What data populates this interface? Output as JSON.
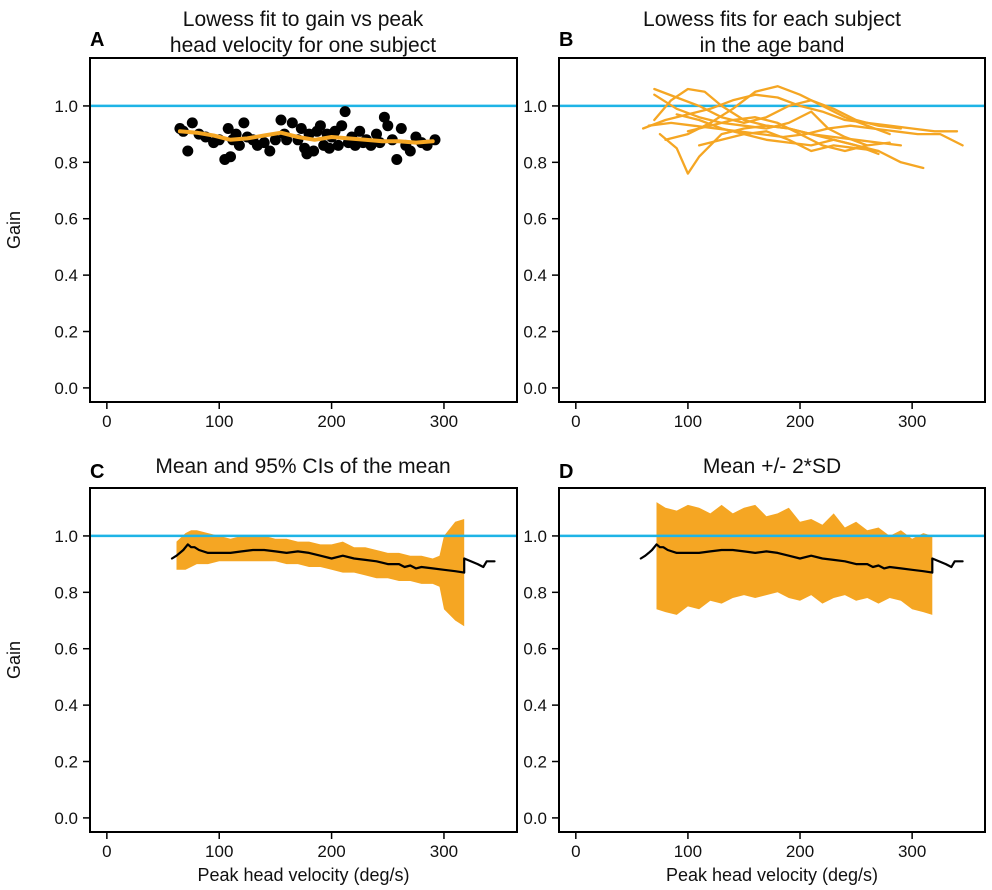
{
  "colors": {
    "orange": "#F5A623",
    "reference": "#1EB4E6",
    "points": "#000000",
    "mean": "#000000"
  },
  "chart_data": [
    {
      "panel": "A",
      "type": "scatter",
      "title": [
        "Lowess fit to gain vs peak",
        "head velocity for one subject"
      ],
      "ylabel": "Gain",
      "xlabel": "",
      "xlim": [
        -15,
        365
      ],
      "ylim": [
        -0.05,
        1.17
      ],
      "xticks": [
        0,
        100,
        200,
        300
      ],
      "yticks": [
        0.0,
        0.2,
        0.4,
        0.6,
        0.8,
        1.0
      ],
      "reference_line": 1.0,
      "points": [
        [
          65,
          0.92
        ],
        [
          68,
          0.91
        ],
        [
          72,
          0.84
        ],
        [
          76,
          0.94
        ],
        [
          82,
          0.9
        ],
        [
          88,
          0.89
        ],
        [
          95,
          0.87
        ],
        [
          100,
          0.88
        ],
        [
          105,
          0.81
        ],
        [
          108,
          0.92
        ],
        [
          110,
          0.82
        ],
        [
          112,
          0.88
        ],
        [
          115,
          0.9
        ],
        [
          118,
          0.86
        ],
        [
          122,
          0.94
        ],
        [
          125,
          0.89
        ],
        [
          130,
          0.88
        ],
        [
          134,
          0.86
        ],
        [
          140,
          0.87
        ],
        [
          145,
          0.84
        ],
        [
          150,
          0.88
        ],
        [
          155,
          0.95
        ],
        [
          158,
          0.9
        ],
        [
          160,
          0.88
        ],
        [
          165,
          0.94
        ],
        [
          170,
          0.88
        ],
        [
          173,
          0.92
        ],
        [
          176,
          0.85
        ],
        [
          178,
          0.83
        ],
        [
          180,
          0.9
        ],
        [
          184,
          0.84
        ],
        [
          187,
          0.91
        ],
        [
          190,
          0.93
        ],
        [
          193,
          0.86
        ],
        [
          196,
          0.9
        ],
        [
          198,
          0.85
        ],
        [
          200,
          0.89
        ],
        [
          203,
          0.91
        ],
        [
          206,
          0.86
        ],
        [
          209,
          0.93
        ],
        [
          212,
          0.98
        ],
        [
          215,
          0.87
        ],
        [
          218,
          0.89
        ],
        [
          221,
          0.86
        ],
        [
          225,
          0.91
        ],
        [
          228,
          0.87
        ],
        [
          231,
          0.88
        ],
        [
          235,
          0.86
        ],
        [
          240,
          0.9
        ],
        [
          243,
          0.87
        ],
        [
          247,
          0.96
        ],
        [
          250,
          0.93
        ],
        [
          254,
          0.88
        ],
        [
          258,
          0.81
        ],
        [
          262,
          0.92
        ],
        [
          266,
          0.86
        ],
        [
          270,
          0.84
        ],
        [
          275,
          0.89
        ],
        [
          280,
          0.87
        ],
        [
          285,
          0.86
        ],
        [
          292,
          0.88
        ]
      ],
      "series": [
        {
          "name": "Lowess fit",
          "x": [
            65,
            80,
            95,
            110,
            125,
            140,
            155,
            170,
            185,
            200,
            215,
            230,
            245,
            260,
            275,
            290
          ],
          "y": [
            0.91,
            0.905,
            0.895,
            0.88,
            0.885,
            0.895,
            0.905,
            0.89,
            0.88,
            0.89,
            0.885,
            0.88,
            0.875,
            0.875,
            0.87,
            0.875
          ]
        }
      ]
    },
    {
      "panel": "B",
      "type": "line",
      "title": [
        "Lowess fits for each subject",
        "in the age band"
      ],
      "ylabel": "",
      "xlabel": "",
      "xlim": [
        -15,
        365
      ],
      "ylim": [
        -0.05,
        1.17
      ],
      "xticks": [
        0,
        100,
        200,
        300
      ],
      "yticks": [
        0.0,
        0.2,
        0.4,
        0.6,
        0.8,
        1.0
      ],
      "reference_line": 1.0,
      "series": [
        {
          "name": "s1",
          "x": [
            60,
            80,
            100,
            120,
            140,
            160,
            180,
            200,
            220,
            240,
            260,
            280,
            300,
            320,
            340
          ],
          "y": [
            0.92,
            0.95,
            0.97,
            0.99,
            1.02,
            1.04,
            1.03,
            1.0,
            0.98,
            0.95,
            0.94,
            0.93,
            0.92,
            0.91,
            0.91
          ]
        },
        {
          "name": "s2",
          "x": [
            70,
            85,
            100,
            115,
            130,
            150,
            170,
            190,
            210,
            230,
            250,
            270,
            290
          ],
          "y": [
            0.95,
            1.02,
            1.06,
            1.05,
            1.0,
            0.95,
            0.93,
            0.92,
            0.9,
            0.89,
            0.88,
            0.87,
            0.86
          ]
        },
        {
          "name": "s3",
          "x": [
            75,
            90,
            100,
            110,
            130,
            150,
            170,
            190,
            210,
            230,
            250,
            270,
            290,
            310
          ],
          "y": [
            0.9,
            0.85,
            0.76,
            0.82,
            0.9,
            0.92,
            0.93,
            0.92,
            0.9,
            0.88,
            0.86,
            0.84,
            0.8,
            0.78
          ]
        },
        {
          "name": "s4",
          "x": [
            70,
            90,
            110,
            130,
            150,
            170,
            190,
            210,
            230,
            250,
            270,
            290
          ],
          "y": [
            1.06,
            1.03,
            1.0,
            0.96,
            0.94,
            0.96,
            1.0,
            1.02,
            0.99,
            0.95,
            0.93,
            0.92
          ]
        },
        {
          "name": "s5",
          "x": [
            65,
            85,
            105,
            125,
            145,
            165,
            185,
            205,
            225,
            245,
            265,
            285,
            305,
            325,
            345
          ],
          "y": [
            0.93,
            0.94,
            0.93,
            0.92,
            0.91,
            0.9,
            0.89,
            0.9,
            0.92,
            0.93,
            0.92,
            0.91,
            0.9,
            0.9,
            0.86
          ]
        },
        {
          "name": "s6",
          "x": [
            80,
            100,
            120,
            140,
            160,
            180,
            200,
            220,
            240,
            260,
            280
          ],
          "y": [
            0.88,
            0.9,
            0.94,
            0.99,
            1.05,
            1.07,
            1.04,
            1.0,
            0.96,
            0.93,
            0.9
          ]
        },
        {
          "name": "s7",
          "x": [
            90,
            110,
            130,
            150,
            170,
            190,
            210,
            230,
            250,
            270
          ],
          "y": [
            0.97,
            0.95,
            0.92,
            0.9,
            0.88,
            0.87,
            0.86,
            0.88,
            0.86,
            0.83
          ]
        },
        {
          "name": "s8",
          "x": [
            100,
            120,
            140,
            160,
            180,
            200,
            220,
            240,
            260,
            280
          ],
          "y": [
            0.91,
            0.93,
            0.95,
            0.96,
            0.94,
            0.9,
            0.86,
            0.84,
            0.86,
            0.87
          ]
        },
        {
          "name": "s9",
          "x": [
            70,
            90,
            110,
            130,
            150,
            170,
            190,
            210,
            225,
            240,
            260
          ],
          "y": [
            1.04,
            0.99,
            0.96,
            0.94,
            0.93,
            0.92,
            0.94,
            0.98,
            0.92,
            0.89,
            0.86
          ]
        },
        {
          "name": "s10",
          "x": [
            110,
            130,
            150,
            170,
            190,
            210,
            230,
            250,
            270
          ],
          "y": [
            0.86,
            0.88,
            0.9,
            0.91,
            0.88,
            0.84,
            0.86,
            0.85,
            0.84
          ]
        }
      ]
    },
    {
      "panel": "C",
      "type": "area",
      "title": [
        "Mean and 95% CIs of the mean"
      ],
      "ylabel": "Gain",
      "xlabel": "Peak head velocity (deg/s)",
      "xlim": [
        -15,
        365
      ],
      "ylim": [
        -0.05,
        1.17
      ],
      "xticks": [
        0,
        100,
        200,
        300
      ],
      "yticks": [
        0.0,
        0.2,
        0.4,
        0.6,
        0.8,
        1.0
      ],
      "reference_line": 1.0,
      "band": {
        "x": [
          62,
          70,
          75,
          80,
          90,
          100,
          110,
          120,
          130,
          140,
          150,
          160,
          170,
          180,
          190,
          200,
          210,
          220,
          230,
          240,
          250,
          260,
          270,
          280,
          290,
          296,
          300,
          310,
          318
        ],
        "upper": [
          0.98,
          1.01,
          1.02,
          1.02,
          1.01,
          1.0,
          0.99,
          1.0,
          1.0,
          1.0,
          0.99,
          0.99,
          0.98,
          0.98,
          0.97,
          0.97,
          0.98,
          0.96,
          0.96,
          0.95,
          0.94,
          0.94,
          0.93,
          0.93,
          0.92,
          0.93,
          1.0,
          1.05,
          1.06
        ],
        "lower": [
          0.88,
          0.88,
          0.89,
          0.9,
          0.9,
          0.91,
          0.91,
          0.91,
          0.91,
          0.91,
          0.91,
          0.9,
          0.9,
          0.89,
          0.89,
          0.88,
          0.87,
          0.87,
          0.86,
          0.85,
          0.85,
          0.84,
          0.84,
          0.83,
          0.83,
          0.82,
          0.74,
          0.7,
          0.68
        ]
      },
      "series": [
        {
          "name": "Mean",
          "x": [
            58,
            62,
            65,
            68,
            72,
            75,
            78,
            82,
            90,
            100,
            110,
            120,
            130,
            140,
            150,
            160,
            170,
            180,
            190,
            200,
            210,
            220,
            230,
            240,
            250,
            260,
            265,
            270,
            275,
            280,
            290,
            300,
            310,
            318,
            318,
            330,
            335,
            338,
            345
          ],
          "y": [
            0.92,
            0.93,
            0.94,
            0.95,
            0.97,
            0.96,
            0.96,
            0.95,
            0.94,
            0.94,
            0.94,
            0.945,
            0.95,
            0.95,
            0.945,
            0.94,
            0.945,
            0.94,
            0.93,
            0.92,
            0.93,
            0.92,
            0.915,
            0.91,
            0.9,
            0.9,
            0.89,
            0.895,
            0.885,
            0.89,
            0.885,
            0.88,
            0.875,
            0.87,
            0.92,
            0.9,
            0.89,
            0.91,
            0.91
          ]
        }
      ]
    },
    {
      "panel": "D",
      "type": "area",
      "title": [
        "Mean +/- 2*SD"
      ],
      "ylabel": "",
      "xlabel": "Peak head velocity (deg/s)",
      "xlim": [
        -15,
        365
      ],
      "ylim": [
        -0.05,
        1.17
      ],
      "xticks": [
        0,
        100,
        200,
        300
      ],
      "yticks": [
        0.0,
        0.2,
        0.4,
        0.6,
        0.8,
        1.0
      ],
      "reference_line": 1.0,
      "band": {
        "x": [
          72,
          80,
          90,
          100,
          110,
          120,
          130,
          140,
          150,
          160,
          170,
          180,
          190,
          200,
          210,
          220,
          230,
          240,
          250,
          260,
          270,
          280,
          290,
          300,
          310,
          318
        ],
        "upper": [
          1.12,
          1.1,
          1.09,
          1.11,
          1.1,
          1.08,
          1.11,
          1.08,
          1.1,
          1.11,
          1.07,
          1.08,
          1.1,
          1.05,
          1.06,
          1.04,
          1.08,
          1.03,
          1.05,
          1.02,
          1.03,
          1.0,
          1.02,
          0.99,
          1.01,
          1.0
        ],
        "lower": [
          0.74,
          0.73,
          0.72,
          0.75,
          0.74,
          0.77,
          0.76,
          0.78,
          0.79,
          0.78,
          0.79,
          0.8,
          0.78,
          0.77,
          0.79,
          0.76,
          0.78,
          0.79,
          0.77,
          0.78,
          0.76,
          0.78,
          0.77,
          0.74,
          0.73,
          0.72
        ]
      },
      "series": [
        {
          "name": "Mean",
          "x": [
            58,
            62,
            65,
            68,
            72,
            75,
            78,
            82,
            90,
            100,
            110,
            120,
            130,
            140,
            150,
            160,
            170,
            180,
            190,
            200,
            210,
            220,
            230,
            240,
            250,
            260,
            265,
            270,
            275,
            280,
            290,
            300,
            310,
            318,
            318,
            330,
            335,
            338,
            345
          ],
          "y": [
            0.92,
            0.93,
            0.94,
            0.95,
            0.97,
            0.96,
            0.96,
            0.95,
            0.94,
            0.94,
            0.94,
            0.945,
            0.95,
            0.95,
            0.945,
            0.94,
            0.945,
            0.94,
            0.93,
            0.92,
            0.93,
            0.92,
            0.915,
            0.91,
            0.9,
            0.9,
            0.89,
            0.895,
            0.885,
            0.89,
            0.885,
            0.88,
            0.875,
            0.87,
            0.92,
            0.9,
            0.89,
            0.91,
            0.91
          ]
        }
      ]
    }
  ]
}
